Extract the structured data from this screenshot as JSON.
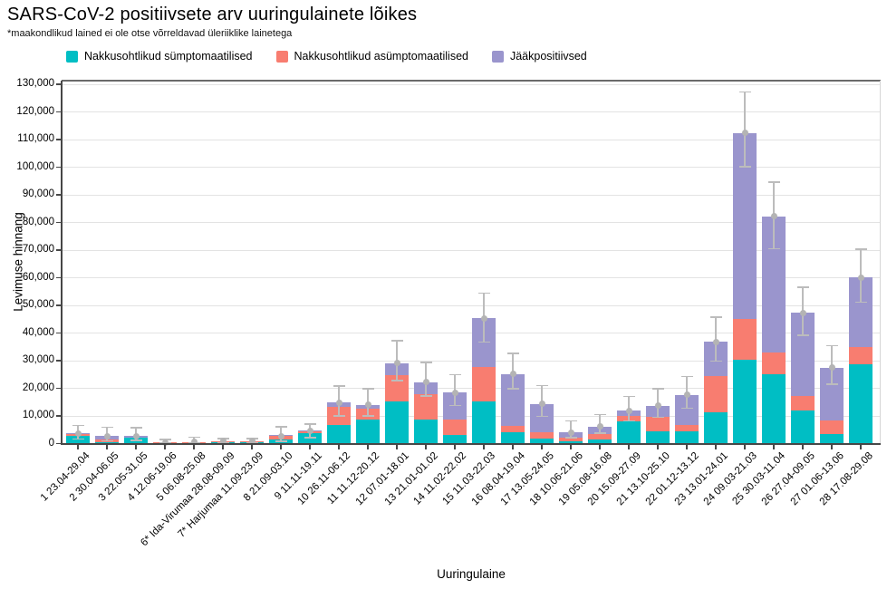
{
  "title": "SARS-CoV-2 positiivsete arv uuringulainete lõikes",
  "subtitle": "*maakondlikud lained ei ole otse võrreldavad üleriiklike lainetega",
  "chart_data": {
    "type": "bar",
    "stacked": true,
    "title": "SARS-CoV-2 positiivsete arv uuringulainete lõikes",
    "xlabel": "Uuringulaine",
    "ylabel": "Levimuse hinnang",
    "ylim": [
      0,
      130000
    ],
    "ytick_step": 10000,
    "grid": "horizontal",
    "legend_position": "top-left",
    "categories": [
      "1 23.04-29.04",
      "2 30.04-06.05",
      "3 22.05-31.05",
      "4 12.06-19.06",
      "5 06.08-25.08",
      "6* Ida-Virumaa 28.08-09.09",
      "7* Harjumaa 11.09-23.09",
      "8 21.09-03.10",
      "9 11.11-19.11",
      "10 26.11-06.12",
      "11 11.12-20.12",
      "12 07.01-18.01",
      "13 21.01-01.02",
      "14 11.02-22.02",
      "15 11.03-22.03",
      "16 08.04-19.04",
      "17 13.05-24.05",
      "18 10.06-21.06",
      "19 05.08-16.08",
      "20 15.09-27.09",
      "21 13.10-25.10",
      "22 01.12-13.12",
      "23 13.01-24.01",
      "24 09.03-21.03",
      "25 30.03-11.04",
      "26 27.04-09.05",
      "27 01.06-13.06",
      "28 17.08-29.08"
    ],
    "series": [
      {
        "name": "Nakkusohtlikud sümptomaatilised",
        "color": "#00bec4",
        "values": [
          2600,
          400,
          1900,
          100,
          100,
          200,
          200,
          1300,
          3500,
          6600,
          8400,
          15200,
          8400,
          3000,
          15200,
          4100,
          1600,
          800,
          1300,
          7800,
          4400,
          4400,
          11100,
          30300,
          24800,
          11700,
          3300,
          28600
        ]
      },
      {
        "name": "Nakkusohtlikud asümptomaatilised",
        "color": "#f87d70",
        "values": [
          700,
          900,
          200,
          100,
          300,
          500,
          500,
          1200,
          800,
          6500,
          4100,
          9300,
          9300,
          5600,
          12200,
          2200,
          2500,
          1100,
          2000,
          2200,
          5200,
          2200,
          13100,
          14700,
          8000,
          5400,
          4900,
          6300
        ]
      },
      {
        "name": "Jääkpositiivsed",
        "color": "#9a95cd",
        "values": [
          100,
          1200,
          500,
          0,
          0,
          0,
          0,
          100,
          100,
          1600,
          1400,
          4500,
          4300,
          9700,
          17800,
          18700,
          10000,
          2000,
          2700,
          1700,
          3900,
          10800,
          12400,
          67300,
          49200,
          30100,
          19100,
          25100
        ]
      }
    ],
    "totals": [
      3400,
      2500,
      2600,
      200,
      400,
      700,
      700,
      2600,
      4400,
      14700,
      13900,
      29000,
      22000,
      18300,
      45200,
      25000,
      14100,
      3900,
      6000,
      11700,
      13500,
      17400,
      36600,
      112300,
      82000,
      47200,
      27300,
      60000
    ],
    "error_bars": {
      "color": "#bcbcbc",
      "low": [
        1500,
        900,
        1000,
        0,
        0,
        100,
        100,
        600,
        2000,
        9800,
        9800,
        22600,
        17000,
        13600,
        36500,
        19700,
        9700,
        2000,
        3600,
        8000,
        9300,
        12700,
        29700,
        100000,
        70400,
        39000,
        21300,
        51000
      ],
      "high": [
        6400,
        5800,
        5600,
        1300,
        2200,
        1700,
        1600,
        5900,
        6900,
        20700,
        19700,
        37000,
        29200,
        24700,
        54300,
        32400,
        20800,
        8000,
        10400,
        16900,
        19700,
        24100,
        45600,
        127000,
        94400,
        56400,
        35200,
        70200
      ],
      "point": [
        3400,
        2500,
        2600,
        200,
        400,
        700,
        700,
        2600,
        4400,
        14700,
        13900,
        29000,
        22000,
        18300,
        45200,
        25000,
        14100,
        3900,
        6000,
        11700,
        13500,
        17400,
        36600,
        112300,
        82000,
        47200,
        27300,
        60000
      ]
    },
    "colors": {
      "grid": "#e3e3e3",
      "axis": "#474747",
      "panel_border_right": "#d6d6d6"
    }
  }
}
